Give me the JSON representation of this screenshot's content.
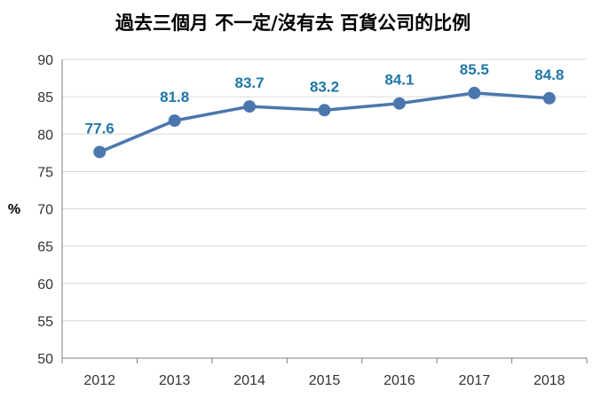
{
  "chart_data": {
    "type": "line",
    "title": "過去三個月 不一定/沒有去 百貨公司的比例",
    "ylabel": "%",
    "xlabel": "",
    "categories": [
      "2012",
      "2013",
      "2014",
      "2015",
      "2016",
      "2017",
      "2018"
    ],
    "series": [
      {
        "values": [
          77.6,
          81.8,
          83.7,
          83.2,
          84.1,
          85.5,
          84.8
        ]
      }
    ],
    "data_labels": [
      "77.6",
      "81.8",
      "83.7",
      "83.2",
      "84.1",
      "85.5",
      "84.8"
    ],
    "ylim": [
      50,
      90
    ],
    "yticks": [
      "50",
      "55",
      "60",
      "65",
      "70",
      "75",
      "80",
      "85",
      "90"
    ],
    "grid": true,
    "legend": "none",
    "colors": {
      "line": "#4a77ad",
      "label": "#1f77a8",
      "grid": "#d9d9d9",
      "axis": "#7f7f7f"
    }
  }
}
